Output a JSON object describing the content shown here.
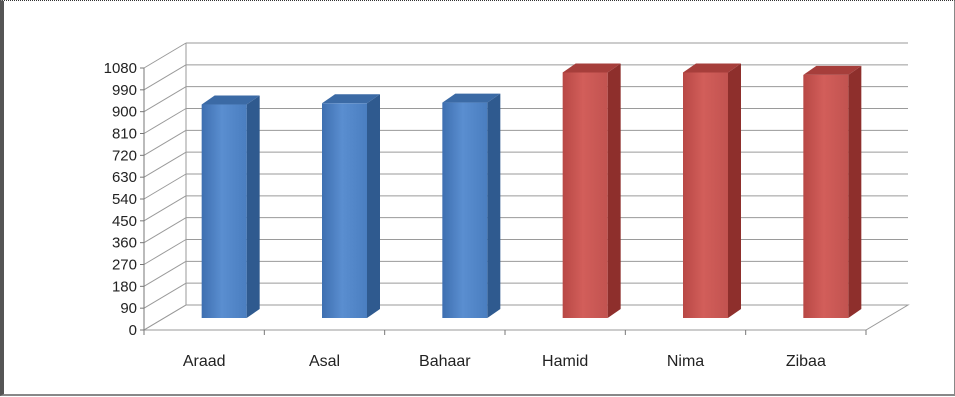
{
  "chart_data": {
    "type": "bar",
    "style": "3d-column",
    "title": "",
    "xlabel": "",
    "ylabel": "",
    "ylim": [
      0,
      1080
    ],
    "yticks": [
      0,
      90,
      180,
      270,
      360,
      450,
      540,
      630,
      720,
      810,
      900,
      990,
      1080
    ],
    "grid": true,
    "legend": "none",
    "categories": [
      "Araad",
      "Asal",
      "Bahaar",
      "Hamid",
      "Nima",
      "Zibaa"
    ],
    "values": [
      880,
      885,
      888,
      1012,
      1012,
      1002
    ],
    "bar_colors": [
      "#4F81BD",
      "#4F81BD",
      "#4F81BD",
      "#C0504D",
      "#C0504D",
      "#C0504D"
    ]
  }
}
